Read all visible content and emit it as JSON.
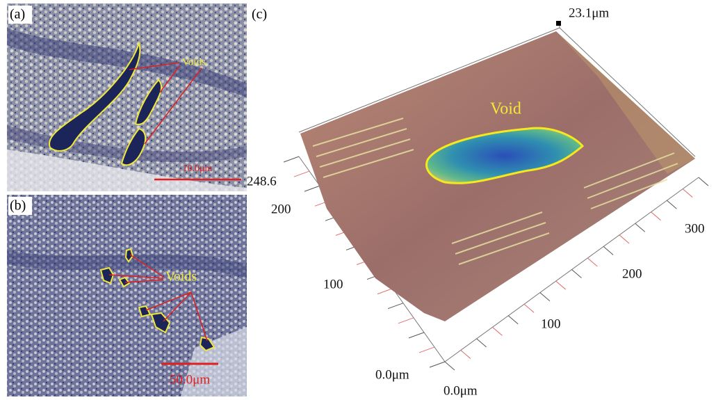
{
  "panels": {
    "a": {
      "label": "(a)",
      "annotation": "Voids",
      "scale_bar": "10.0μm"
    },
    "b": {
      "label": "(b)",
      "annotation": "Voids",
      "scale_bar": "50.0μm"
    },
    "c": {
      "label": "(c)",
      "annotation": "Void",
      "z_max": "23.1μm",
      "y_axis": [
        "248.6",
        "200",
        "100",
        "0.0μm"
      ],
      "x_axis": [
        "0.0μm",
        "100",
        "200",
        "300"
      ]
    }
  }
}
